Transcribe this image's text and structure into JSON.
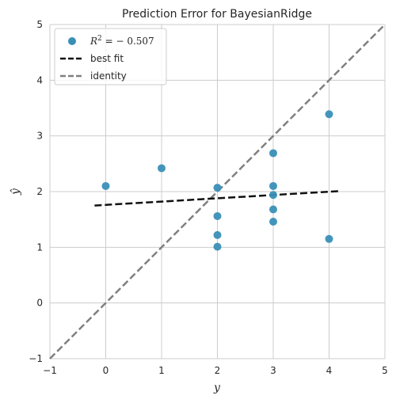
{
  "chart_data": {
    "type": "scatter",
    "title": "Prediction Error for BayesianRidge",
    "xlabel": "y",
    "ylabel": "ŷ",
    "xlim": [
      -1,
      5
    ],
    "ylim": [
      -1,
      5
    ],
    "x_ticks": [
      "−1",
      "0",
      "1",
      "2",
      "3",
      "4",
      "5"
    ],
    "y_ticks": [
      "−1",
      "0",
      "1",
      "2",
      "3",
      "4",
      "5"
    ],
    "grid": true,
    "legend_position": "top-left",
    "points": {
      "x": [
        0,
        1,
        2,
        2,
        2,
        2,
        3,
        3,
        3,
        3,
        3,
        4,
        4
      ],
      "y": [
        2.1,
        2.42,
        2.07,
        1.56,
        1.22,
        1.01,
        2.69,
        2.1,
        1.94,
        1.68,
        1.46,
        3.39,
        1.15
      ],
      "color": "#3a8fb7"
    },
    "best_fit": {
      "x": [
        -0.2,
        4.2
      ],
      "y": [
        1.75,
        2.01
      ],
      "color": "#111111",
      "style": "dashed"
    },
    "identity": {
      "x": [
        -1,
        5
      ],
      "y": [
        -1,
        5
      ],
      "color": "#808080",
      "style": "dashed"
    },
    "legend": {
      "r2_prefix": "R",
      "r2_sup": "2",
      "r2_value": " = − 0.507",
      "best_fit_label": "best fit",
      "identity_label": "identity"
    }
  }
}
